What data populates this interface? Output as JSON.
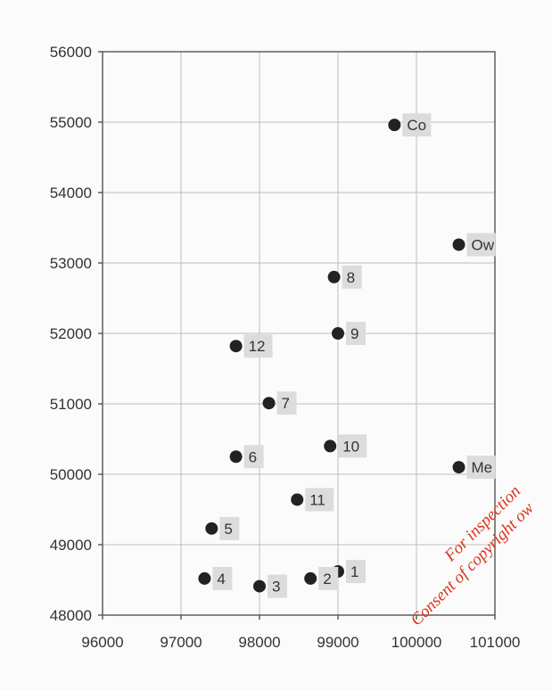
{
  "chart_data": {
    "type": "scatter",
    "xlim": [
      96000,
      101000
    ],
    "ylim": [
      48000,
      56000
    ],
    "x_ticks": [
      "96000",
      "97000",
      "98000",
      "99000",
      "100000",
      "101000"
    ],
    "y_ticks": [
      "48000",
      "49000",
      "50000",
      "51000",
      "52000",
      "53000",
      "54000",
      "55000",
      "56000"
    ],
    "grid": true,
    "points": [
      {
        "label": "Co",
        "x": 99720,
        "y": 54960
      },
      {
        "label": "Ow",
        "x": 100540,
        "y": 53260
      },
      {
        "label": "8",
        "x": 98950,
        "y": 52800
      },
      {
        "label": "9",
        "x": 99000,
        "y": 52000
      },
      {
        "label": "12",
        "x": 97700,
        "y": 51820
      },
      {
        "label": "7",
        "x": 98120,
        "y": 51010
      },
      {
        "label": "10",
        "x": 98900,
        "y": 50400
      },
      {
        "label": "6",
        "x": 97700,
        "y": 50250
      },
      {
        "label": "Me",
        "x": 100540,
        "y": 50100
      },
      {
        "label": "11",
        "x": 98480,
        "y": 49640
      },
      {
        "label": "5",
        "x": 97390,
        "y": 49230
      },
      {
        "label": "1",
        "x": 99000,
        "y": 48620
      },
      {
        "label": "4",
        "x": 97300,
        "y": 48520
      },
      {
        "label": "2",
        "x": 98650,
        "y": 48520
      },
      {
        "label": "3",
        "x": 98000,
        "y": 48410
      }
    ]
  },
  "watermark": {
    "line1": "For inspection",
    "line2": "Consent of copyright ow"
  },
  "colors": {
    "watermark": "#d9341e",
    "dot": "#222222",
    "label_bg": "#dcdcdc"
  }
}
